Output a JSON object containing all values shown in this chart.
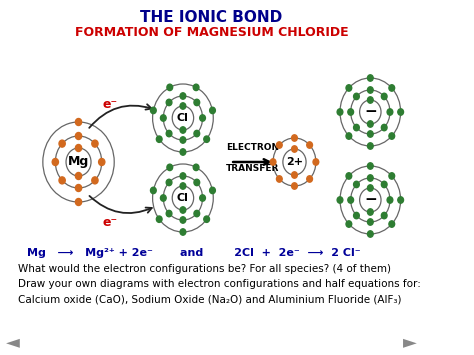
{
  "title": "THE IONIC BOND",
  "subtitle": "FORMATION OF MAGNESIUM CHLORIDE",
  "title_color": "#00008B",
  "subtitle_color": "#CC0000",
  "electron_transfer_label1": "ELECTRON",
  "electron_transfer_label2": "TRANSFER",
  "eq_part1": "Mg",
  "eq_part2": "Mg",
  "eq_part3": "2Cl  +  2e",
  "eq_part4": "2 Cl",
  "text1": "What would the electron configurations be? For all species? (4 of them)",
  "text2": "Draw your own diagrams with electron configurations and half equations for:",
  "text3": "Calcium oxide (CaO), Sodium Oxide (Na₂O) and Aluminium Fluoride (AlF₃)",
  "bg_color": "#ffffff",
  "shell_color": "#666666",
  "mg_electron_color": "#D2691E",
  "cl_electron_color": "#2E7D32",
  "arrow_color": "#222222",
  "arrow_e_color": "#CC0000",
  "eq_color": "#000099",
  "nav_color": "#888888"
}
